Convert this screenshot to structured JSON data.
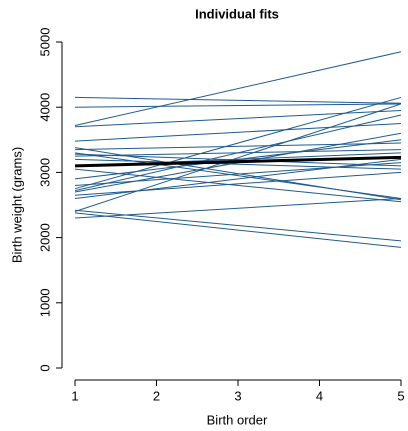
{
  "chart_data": {
    "type": "line",
    "title": "Individual fits",
    "x_label": "Birth order",
    "y_label": "Birth weight (grams)",
    "x": [
      1,
      5
    ],
    "xlim": [
      1,
      5
    ],
    "xticks": [
      1,
      2,
      3,
      4,
      5
    ],
    "ylim": [
      0,
      5000
    ],
    "yticks": [
      0,
      1000,
      2000,
      3000,
      4000,
      5000
    ],
    "series": [
      {
        "color": "#1f5b8e",
        "values": [
          4150,
          4060
        ]
      },
      {
        "color": "#1f5b8e",
        "values": [
          4000,
          4050
        ]
      },
      {
        "color": "#1f5b8e",
        "values": [
          3720,
          4850
        ]
      },
      {
        "color": "#1f5b8e",
        "values": [
          3700,
          3950
        ]
      },
      {
        "color": "#1f5b8e",
        "values": [
          3480,
          3750
        ]
      },
      {
        "color": "#1f5b8e",
        "values": [
          3380,
          2580
        ]
      },
      {
        "color": "#1f5b8e",
        "values": [
          3350,
          3450
        ]
      },
      {
        "color": "#1f5b8e",
        "values": [
          3300,
          2600
        ]
      },
      {
        "color": "#1f5b8e",
        "values": [
          3280,
          3100
        ]
      },
      {
        "color": "#1f5b8e",
        "values": [
          3250,
          3350
        ]
      },
      {
        "color": "#1f5b8e",
        "values": [
          3200,
          3050
        ]
      },
      {
        "color": "#1f5b8e",
        "values": [
          3100,
          3300
        ]
      },
      {
        "color": "#1f5b8e",
        "values": [
          3050,
          2550
        ]
      },
      {
        "color": "#1f5b8e",
        "values": [
          2900,
          3500
        ]
      },
      {
        "color": "#1f5b8e",
        "values": [
          2800,
          3150
        ]
      },
      {
        "color": "#1f5b8e",
        "values": [
          2750,
          4150
        ]
      },
      {
        "color": "#1f5b8e",
        "values": [
          2720,
          3880
        ]
      },
      {
        "color": "#1f5b8e",
        "values": [
          2700,
          3600
        ]
      },
      {
        "color": "#1f5b8e",
        "values": [
          2650,
          3000
        ]
      },
      {
        "color": "#1f5b8e",
        "values": [
          2600,
          3200
        ]
      },
      {
        "color": "#1f5b8e",
        "values": [
          2420,
          1950
        ]
      },
      {
        "color": "#1f5b8e",
        "values": [
          2400,
          4050
        ]
      },
      {
        "color": "#1f5b8e",
        "values": [
          2380,
          1850
        ]
      },
      {
        "color": "#1f5b8e",
        "values": [
          2300,
          2600
        ]
      },
      {
        "color": "#000000",
        "line_width": 3,
        "values": [
          3100,
          3230
        ]
      }
    ]
  }
}
